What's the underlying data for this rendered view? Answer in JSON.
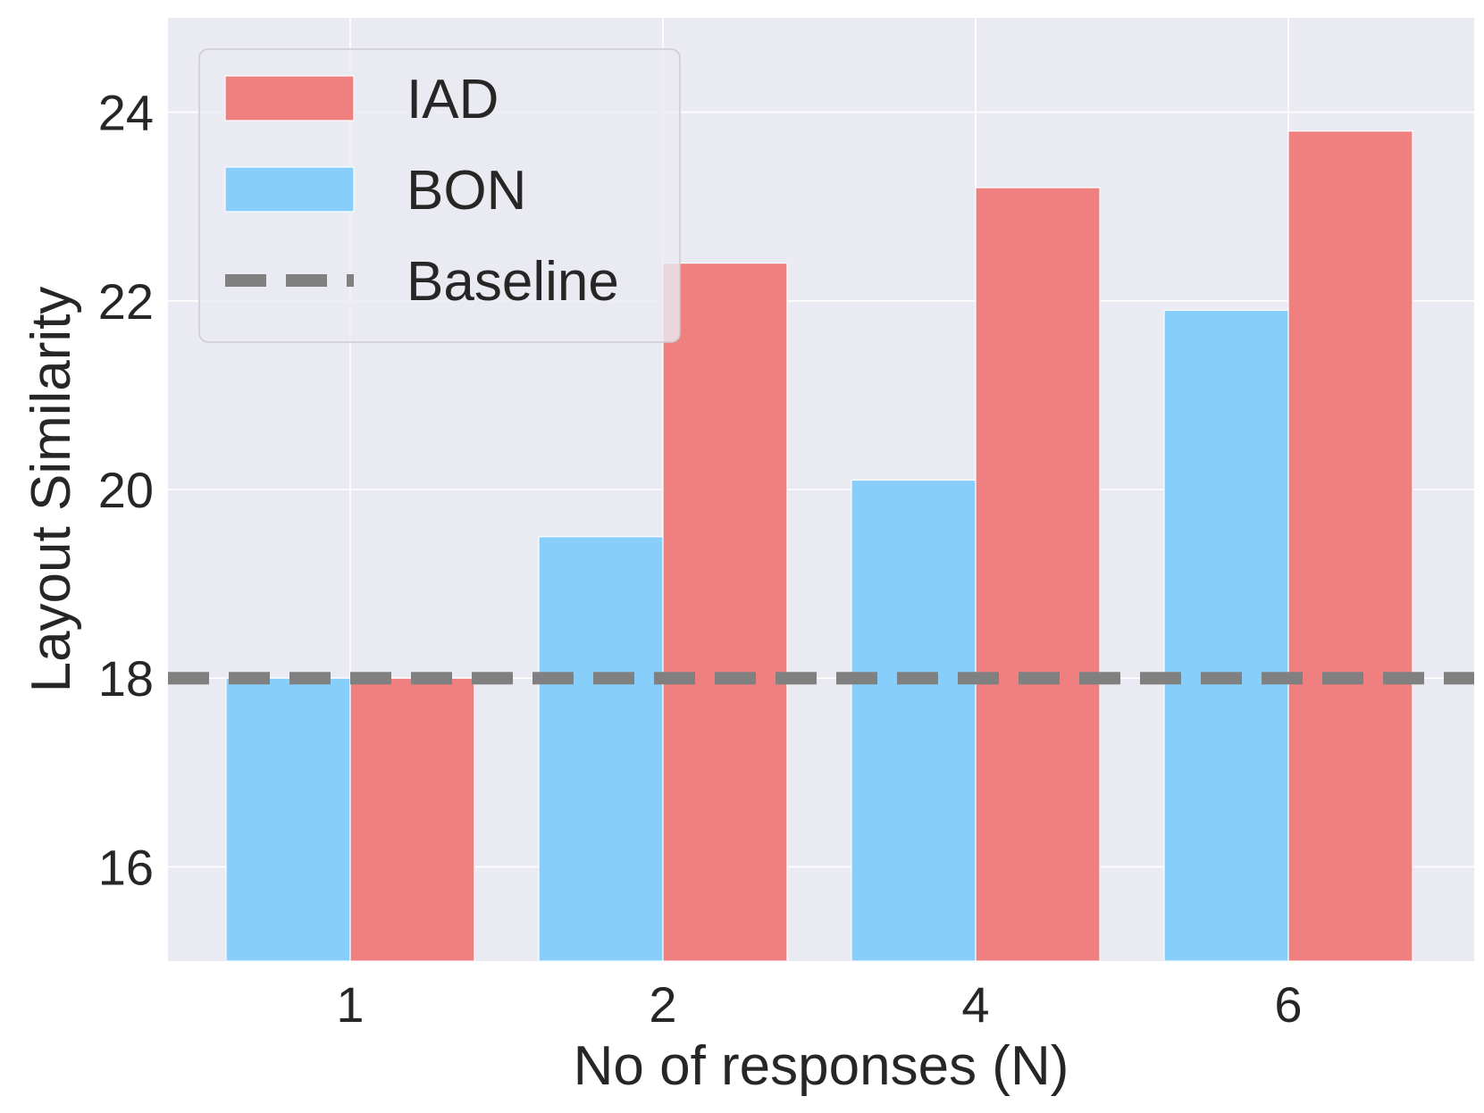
{
  "chart_data": {
    "type": "bar",
    "title": "",
    "xlabel": "No of responses (N)",
    "ylabel": "Layout Similarity",
    "categories": [
      "1",
      "2",
      "4",
      "6"
    ],
    "series": [
      {
        "name": "BON",
        "color": "#87CEFA",
        "values": [
          18.0,
          19.5,
          20.1,
          21.9
        ]
      },
      {
        "name": "IAD",
        "color": "#F08080",
        "values": [
          18.0,
          22.4,
          23.2,
          23.8
        ]
      }
    ],
    "baseline": {
      "name": "Baseline",
      "value": 18.0,
      "color": "#808080",
      "style": "dashed"
    },
    "ylim": [
      15,
      25
    ],
    "yticks": [
      16,
      18,
      20,
      22,
      24
    ],
    "grid": true,
    "legend": {
      "position": "top-left",
      "entries": [
        {
          "label": "IAD",
          "kind": "bar",
          "color": "#F08080"
        },
        {
          "label": "BON",
          "kind": "bar",
          "color": "#87CEFA"
        },
        {
          "label": "Baseline",
          "kind": "dashed-line",
          "color": "#808080"
        }
      ]
    },
    "background_color": "#EAEAF2"
  }
}
